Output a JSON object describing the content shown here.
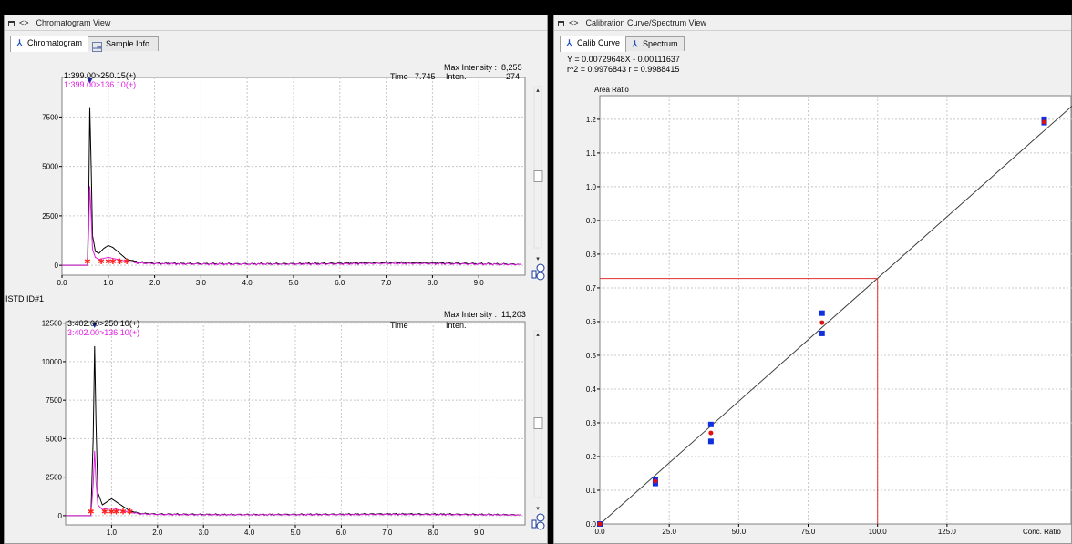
{
  "left": {
    "title": "Chromatogram View",
    "tabs": [
      {
        "label": "Chromatogram",
        "icon": "peak-icon",
        "active": true
      },
      {
        "label": "Sample Info.",
        "icon": "sample-info-icon",
        "active": false
      }
    ],
    "top": {
      "max_intensity_label": "Max Intensity :",
      "max_intensity_value": "8,255",
      "time_label": "Time",
      "time_value": "7.745",
      "inten_label": "Inten.",
      "inten_value": "274",
      "trace1": "1:399.00>250.15(+)",
      "trace2": "1:399.00>136.10(+)"
    },
    "istd_label": "ISTD ID#1",
    "bottom": {
      "max_intensity_label": "Max Intensity :",
      "max_intensity_value": "11,203",
      "time_label": "Time",
      "inten_label": "Inten.",
      "trace1": "3:402.00>250.10(+)",
      "trace2": "3:402.00>136.10(+)"
    }
  },
  "right": {
    "title": "Calibration Curve/Spectrum View",
    "tabs": [
      {
        "label": "Calib Curve",
        "icon": "peak-icon",
        "active": true
      },
      {
        "label": "Spectrum",
        "icon": "peak-icon",
        "active": false
      }
    ],
    "equation": "Y = 0.00729648X - 0.00111637",
    "r_stats": "r^2 = 0.9976843  r = 0.9988415"
  },
  "colors": {
    "trace1": "#000000",
    "trace2": "#e020e0",
    "peak_marker": "#ff2020",
    "calib_point": "#1030e0",
    "calib_mean": "#e01010",
    "calib_line": "#404040",
    "target_line": "#e03030"
  },
  "chart_data": [
    {
      "type": "line",
      "name": "top-chromatogram",
      "xlabel": "",
      "ylabel": "",
      "xlim": [
        0.0,
        10.0
      ],
      "ylim": [
        -500,
        9500
      ],
      "x_ticks": [
        "0.0",
        "1.0",
        "2.0",
        "3.0",
        "4.0",
        "5.0",
        "6.0",
        "7.0",
        "8.0",
        "9.0"
      ],
      "y_ticks": [
        "0",
        "2500",
        "5000",
        "7500"
      ],
      "series": [
        {
          "name": "1:399.00>250.15(+)",
          "x": [
            0,
            0.55,
            0.58,
            0.6,
            0.63,
            0.66,
            0.72,
            0.8,
            0.9,
            1.0,
            1.1,
            1.2,
            1.3,
            1.4,
            1.6,
            2.0,
            3.0,
            4.0,
            5.0,
            6.0,
            7.0,
            8.0,
            9.0,
            9.9
          ],
          "y": [
            0,
            0,
            4000,
            8000,
            5000,
            1500,
            700,
            600,
            850,
            1000,
            900,
            700,
            500,
            300,
            180,
            100,
            80,
            70,
            80,
            100,
            150,
            120,
            80,
            50
          ]
        },
        {
          "name": "1:399.00>136.10(+)",
          "x": [
            0,
            0.55,
            0.58,
            0.6,
            0.63,
            0.66,
            0.72,
            0.8,
            0.9,
            1.0,
            1.1,
            1.2,
            1.3,
            1.4,
            1.6,
            2.0,
            3.0,
            4.0,
            5.0,
            6.0,
            7.0,
            8.0,
            9.0,
            9.9
          ],
          "y": [
            0,
            0,
            2000,
            4000,
            2500,
            800,
            400,
            300,
            350,
            400,
            350,
            300,
            250,
            200,
            120,
            80,
            60,
            60,
            60,
            70,
            90,
            80,
            60,
            40
          ]
        }
      ]
    },
    {
      "type": "line",
      "name": "bottom-chromatogram",
      "xlabel": "",
      "ylabel": "",
      "xlim": [
        0.0,
        10.0
      ],
      "ylim": [
        -600,
        12600
      ],
      "x_ticks": [
        "1.0",
        "2.0",
        "3.0",
        "4.0",
        "5.0",
        "6.0",
        "7.0",
        "8.0",
        "9.0"
      ],
      "y_ticks": [
        "0",
        "2500",
        "5000",
        "7500",
        "10000",
        "12500"
      ],
      "series": [
        {
          "name": "3:402.00>250.10(+)",
          "x": [
            0,
            0.55,
            0.6,
            0.63,
            0.66,
            0.7,
            0.8,
            0.9,
            1.0,
            1.1,
            1.2,
            1.3,
            1.4,
            1.6,
            2.0,
            3.0,
            4.0,
            5.0,
            6.0,
            7.0,
            8.0,
            9.0,
            9.9
          ],
          "y": [
            0,
            0,
            5000,
            11000,
            6000,
            1500,
            700,
            900,
            1100,
            900,
            700,
            500,
            300,
            150,
            100,
            80,
            70,
            80,
            90,
            110,
            100,
            80,
            50
          ]
        },
        {
          "name": "3:402.00>136.10(+)",
          "x": [
            0,
            0.55,
            0.6,
            0.63,
            0.66,
            0.7,
            0.8,
            0.9,
            1.0,
            1.1,
            1.2,
            1.3,
            1.4,
            1.6,
            2.0,
            3.0,
            4.0,
            5.0,
            6.0,
            7.0,
            8.0,
            9.0,
            9.9
          ],
          "y": [
            0,
            0,
            2000,
            4200,
            2200,
            700,
            400,
            450,
            500,
            420,
            350,
            280,
            200,
            120,
            80,
            60,
            60,
            60,
            70,
            80,
            70,
            60,
            40
          ]
        }
      ]
    },
    {
      "type": "scatter",
      "name": "calibration-curve",
      "xlabel": "Conc. Ratio",
      "ylabel": "Area Ratio",
      "xlim": [
        0,
        170
      ],
      "ylim": [
        0,
        1.27
      ],
      "x_ticks": [
        "0.0",
        "25.0",
        "50.0",
        "75.0",
        "100.0",
        "125.0"
      ],
      "y_ticks": [
        "0.0",
        "0.1",
        "0.2",
        "0.3",
        "0.4",
        "0.5",
        "0.6",
        "0.7",
        "0.8",
        "0.9",
        "1.0",
        "1.1",
        "1.2"
      ],
      "standards": {
        "x": [
          0,
          20,
          20,
          40,
          40,
          80,
          80,
          160,
          160
        ],
        "y": [
          0,
          0.13,
          0.12,
          0.295,
          0.245,
          0.625,
          0.565,
          1.2,
          1.19
        ]
      },
      "means": {
        "x": [
          0,
          20,
          40,
          80,
          160
        ],
        "y": [
          0,
          0.127,
          0.27,
          0.597,
          1.192
        ]
      },
      "fit": {
        "slope": 0.00729648,
        "intercept": -0.00111637
      },
      "target": {
        "x": 100.0,
        "y": 0.728
      }
    }
  ]
}
